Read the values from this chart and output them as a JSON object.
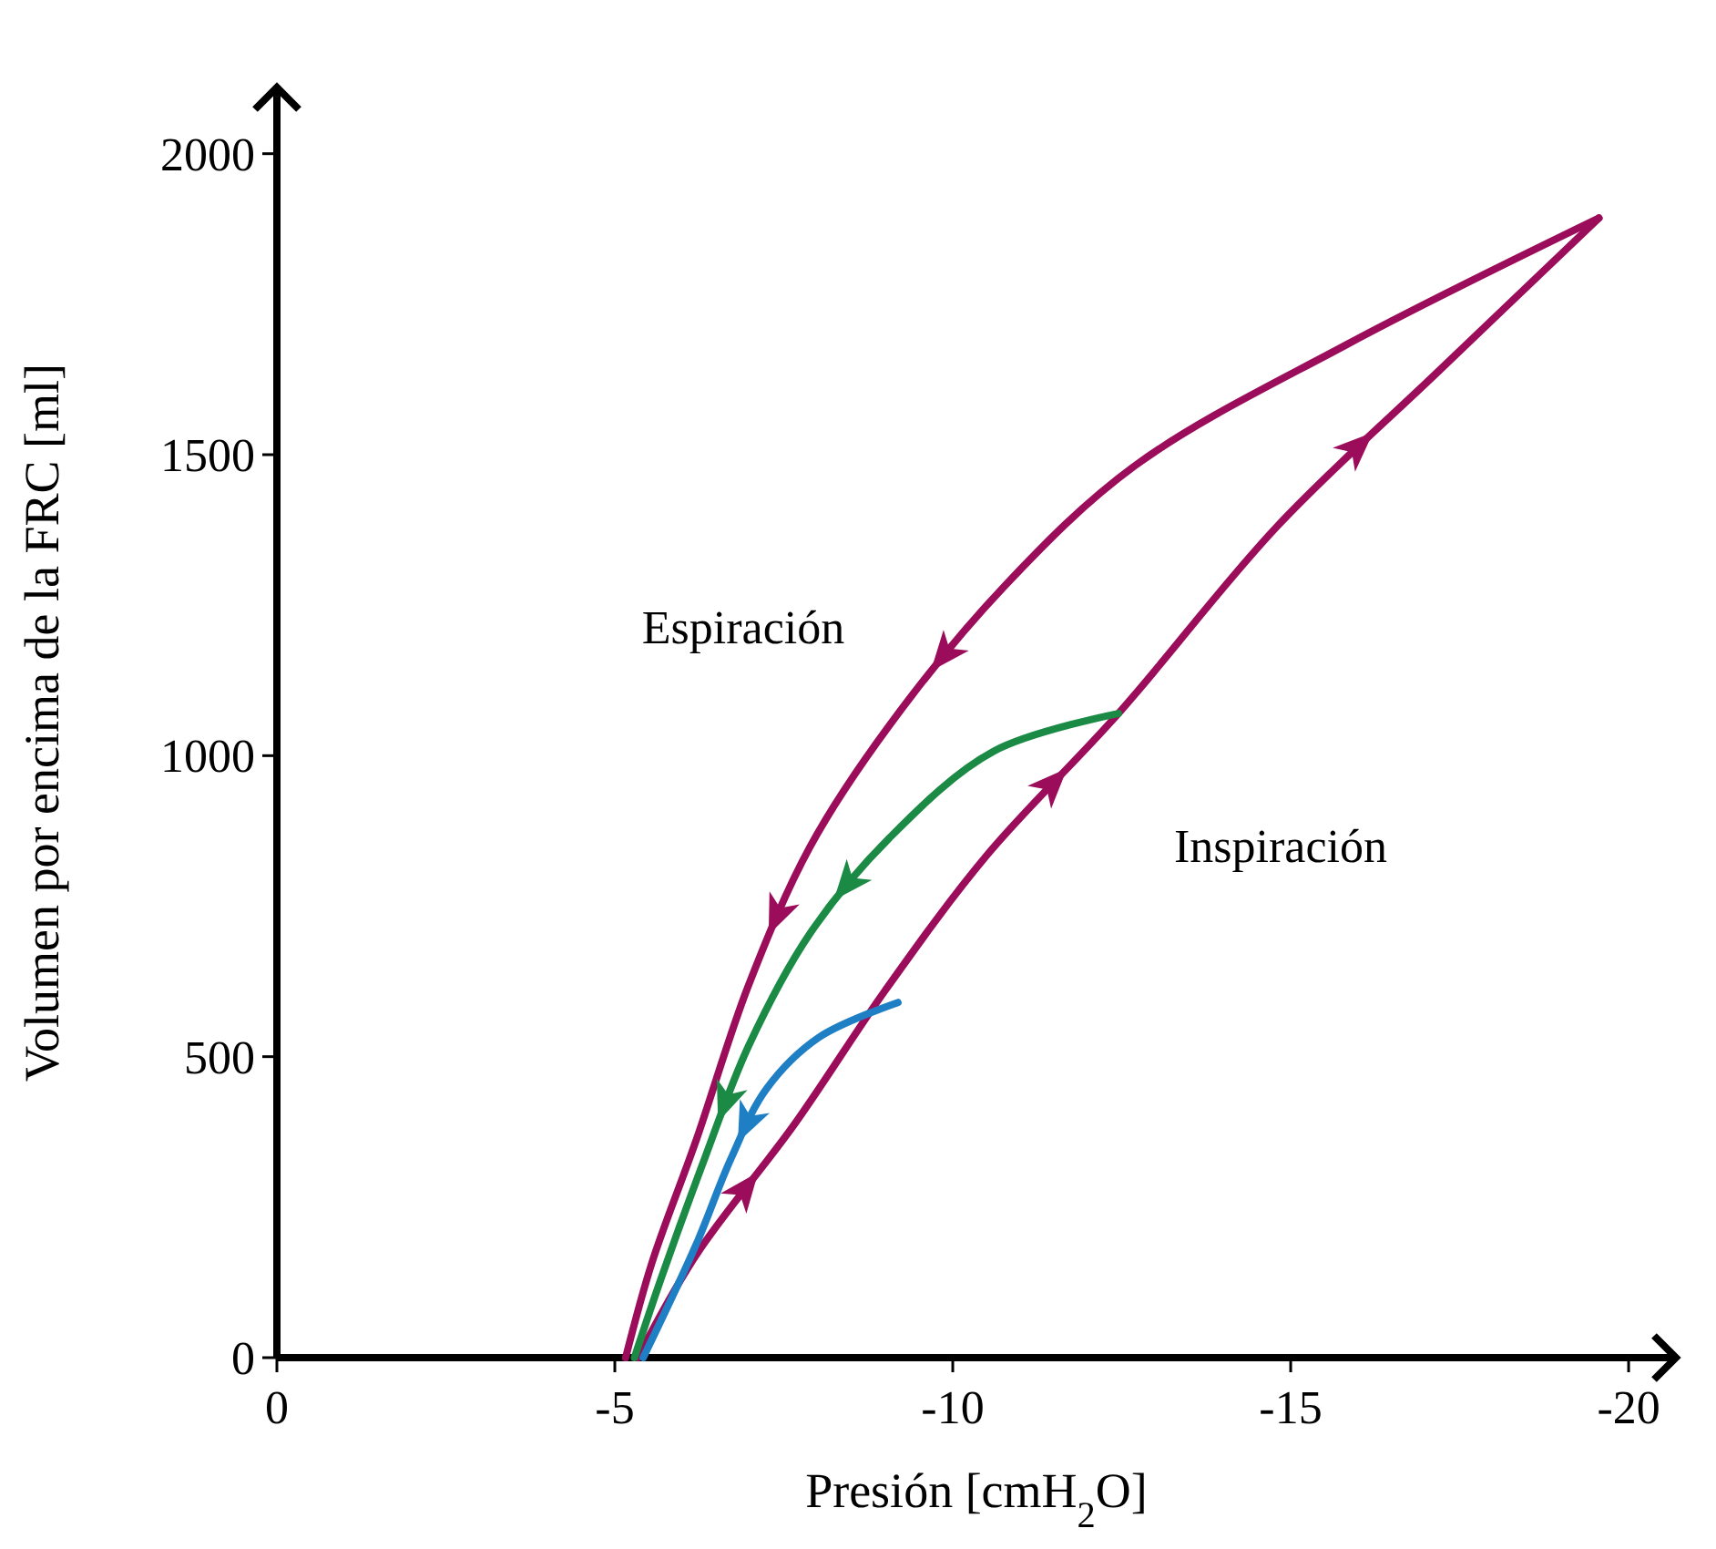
{
  "chart_data": {
    "type": "line",
    "xlabel": "Presión [cmH$_{2}$O]",
    "ylabel": "Volumen por encima de la FRC [ml]",
    "xlim": [
      0,
      -20.7
    ],
    "ylim": [
      0,
      2110
    ],
    "xticks": [
      0,
      -5,
      -10,
      -15,
      -20
    ],
    "yticks": [
      0,
      500,
      1000,
      1500,
      2000
    ],
    "grid": false,
    "marker": "none",
    "line_style": "solid",
    "series": [
      {
        "color": "#9b0d5a",
        "x": [
          -5.34,
          -6.2,
          -7.66,
          -9.0,
          -10.5,
          -12.45,
          -14.8,
          -17.2,
          -19.56
        ],
        "values": [
          0,
          170,
          388,
          610,
          834,
          1070,
          1381,
          1640,
          1893
        ]
      },
      {
        "color": "#9b0d5a",
        "x": [
          -19.56,
          -15.83,
          -12.7,
          -10.76,
          -9.06,
          -7.89,
          -6.98,
          -6.2,
          -5.55,
          -5.16
        ],
        "values": [
          1893,
          1683,
          1482,
          1281,
          1050,
          849,
          619,
          360,
          158,
          0
        ]
      },
      {
        "color": "#1a8a45",
        "x": [
          -12.45,
          -10.6,
          -9.06,
          -7.89,
          -6.98,
          -6.33,
          -5.68,
          -5.29
        ],
        "values": [
          1070,
          1007,
          863,
          705,
          518,
          331,
          130,
          0
        ]
      },
      {
        "color": "#1f7fc4",
        "x": [
          -9.19,
          -8.02,
          -7.24,
          -6.72,
          -6.2,
          -5.42
        ],
        "values": [
          590,
          532,
          446,
          331,
          187,
          0
        ]
      }
    ],
    "annotations": [
      "Espiración",
      "Inspiración"
    ]
  }
}
